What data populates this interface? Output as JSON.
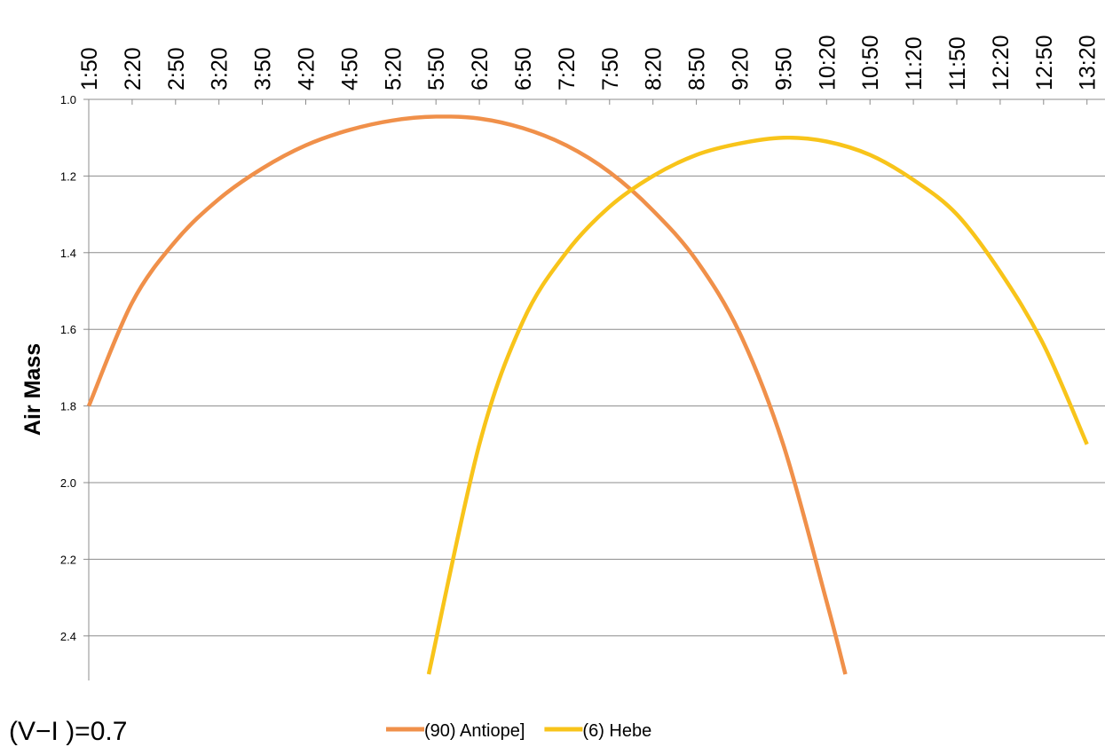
{
  "chart_data": {
    "type": "line",
    "title": "",
    "xlabel": "",
    "ylabel": "Air Mass",
    "x_axis_position": "top",
    "y_axis_inverted": true,
    "ylim": [
      1.0,
      2.5
    ],
    "yticks": [
      1.0,
      1.2,
      1.4,
      1.6,
      1.8,
      2.0,
      2.2,
      2.4
    ],
    "ytick_labels": [
      "1.0",
      "1.2",
      "1.4",
      "1.6",
      "1.8",
      "2.0",
      "2.2",
      "2.4"
    ],
    "xtick_labels": [
      "1:50",
      "2:20",
      "2:50",
      "3:20",
      "3:50",
      "4:20",
      "4:50",
      "5:20",
      "5:50",
      "6:20",
      "6:50",
      "7:20",
      "7:50",
      "8:20",
      "8:50",
      "9:20",
      "9:50",
      "10:20",
      "10:50",
      "11:20",
      "11:50",
      "12:20",
      "12:50",
      "13:20"
    ],
    "grid": "horizontal",
    "legend_position": "bottom",
    "series": [
      {
        "name": "(90) Antiope]",
        "color": "#f0904a",
        "x": [
          "1:50",
          "2:20",
          "2:50",
          "3:20",
          "3:50",
          "4:20",
          "4:50",
          "5:20",
          "5:50",
          "6:20",
          "6:50",
          "7:20",
          "7:50",
          "8:20",
          "8:50",
          "9:20",
          "9:50",
          "10:20",
          "10:33"
        ],
        "values": [
          1.8,
          1.53,
          1.37,
          1.26,
          1.18,
          1.12,
          1.08,
          1.055,
          1.045,
          1.05,
          1.075,
          1.12,
          1.19,
          1.29,
          1.42,
          1.61,
          1.9,
          2.31,
          2.5
        ]
      },
      {
        "name": "(6) Hebe",
        "color": "#f8c41a",
        "x": [
          "5:45",
          "6:20",
          "6:50",
          "7:20",
          "7:50",
          "8:20",
          "8:50",
          "9:20",
          "9:50",
          "10:20",
          "10:50",
          "11:20",
          "11:50",
          "12:20",
          "12:50",
          "13:20"
        ],
        "values": [
          2.5,
          1.9,
          1.58,
          1.4,
          1.28,
          1.2,
          1.145,
          1.115,
          1.1,
          1.11,
          1.145,
          1.21,
          1.3,
          1.45,
          1.64,
          1.9
        ]
      }
    ],
    "annotation": "(V−I )=0.7"
  }
}
